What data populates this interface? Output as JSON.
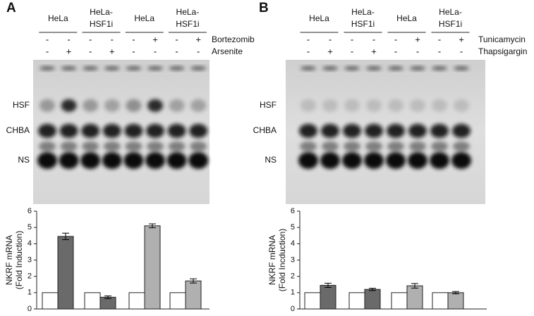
{
  "panels": [
    {
      "label": "A",
      "groups": [
        [
          "HeLa"
        ],
        [
          "HeLa-",
          "HSF1i"
        ],
        [
          "HeLa"
        ],
        [
          "HeLa-",
          "HSF1i"
        ]
      ],
      "treatments": [
        {
          "name": "Bortezomib",
          "signs": [
            "-",
            "-",
            "-",
            "-",
            "-",
            "+",
            "-",
            "+"
          ]
        },
        {
          "name": "Arsenite",
          "signs": [
            "-",
            "+",
            "-",
            "+",
            "-",
            "-",
            "-",
            "-"
          ]
        }
      ],
      "bands": [
        "HSF",
        "CHBA",
        "NS"
      ]
    },
    {
      "label": "B",
      "groups": [
        [
          "HeLa"
        ],
        [
          "HeLa-",
          "HSF1i"
        ],
        [
          "HeLa"
        ],
        [
          "HeLa-",
          "HSF1i"
        ]
      ],
      "treatments": [
        {
          "name": "Tunicamycin",
          "signs": [
            "-",
            "-",
            "-",
            "-",
            "-",
            "+",
            "-",
            "+"
          ]
        },
        {
          "name": "Thapsigargin",
          "signs": [
            "-",
            "+",
            "-",
            "+",
            "-",
            "-",
            "-",
            "-"
          ]
        }
      ],
      "bands": [
        "HSF",
        "CHBA",
        "NS"
      ]
    }
  ],
  "chart_data": [
    {
      "type": "bar",
      "ylabel": [
        "NKRF mRNA",
        "(Fold Induction)"
      ],
      "categories": [
        null,
        null,
        null,
        null,
        null,
        null,
        null,
        null
      ],
      "values": [
        1,
        4.45,
        1,
        0.72,
        1,
        5.1,
        1,
        1.72
      ],
      "errors": [
        null,
        0.2,
        null,
        0.08,
        null,
        0.12,
        null,
        0.13
      ],
      "colors": [
        "#ffffff",
        "#6a6a6a",
        "#ffffff",
        "#6a6a6a",
        "#ffffff",
        "#b0b0b0",
        "#ffffff",
        "#b0b0b0"
      ],
      "ylim": [
        0,
        6
      ],
      "yticks": [
        0,
        1,
        2,
        3,
        4,
        5,
        6
      ]
    },
    {
      "type": "bar",
      "ylabel": [
        "NKRF mRNA",
        "(Fold Incduction)"
      ],
      "categories": [
        null,
        null,
        null,
        null,
        null,
        null,
        null,
        null
      ],
      "values": [
        1,
        1.45,
        1,
        1.2,
        1,
        1.42,
        1,
        1.0
      ],
      "errors": [
        null,
        0.13,
        null,
        0.07,
        null,
        0.14,
        null,
        0.07
      ],
      "colors": [
        "#ffffff",
        "#6a6a6a",
        "#ffffff",
        "#6a6a6a",
        "#ffffff",
        "#b0b0b0",
        "#ffffff",
        "#b0b0b0"
      ],
      "ylim": [
        0,
        6
      ],
      "yticks": [
        0,
        1,
        2,
        3,
        4,
        5,
        6
      ]
    }
  ]
}
